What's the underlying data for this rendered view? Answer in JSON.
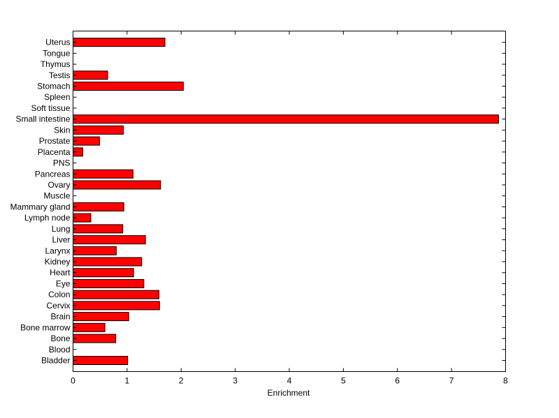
{
  "chart_data": {
    "type": "bar",
    "orientation": "horizontal",
    "xlabel": "Enrichment",
    "ylabel": "",
    "title": "",
    "xlim": [
      0,
      8
    ],
    "xticks": [
      0,
      1,
      2,
      3,
      4,
      5,
      6,
      7,
      8
    ],
    "grid": false,
    "categories": [
      "Bladder",
      "Blood",
      "Bone",
      "Bone marrow",
      "Brain",
      "Cervix",
      "Colon",
      "Eye",
      "Heart",
      "Kidney",
      "Larynx",
      "Liver",
      "Lung",
      "Lymph node",
      "Mammary gland",
      "Muscle",
      "Ovary",
      "Pancreas",
      "PNS",
      "Placenta",
      "Prostate",
      "Skin",
      "Small intestine",
      "Soft tissue",
      "Spleen",
      "Stomach",
      "Testis",
      "Thymus",
      "Tongue",
      "Uterus"
    ],
    "values": [
      1.01,
      0,
      0.79,
      0.59,
      1.03,
      1.6,
      1.59,
      1.31,
      1.12,
      1.27,
      0.8,
      1.34,
      0.92,
      0.33,
      0.94,
      0,
      1.62,
      1.11,
      0,
      0.18,
      0.49,
      0.93,
      7.87,
      0,
      0,
      2.04,
      0.64,
      0,
      0,
      1.7
    ],
    "colors": {
      "bar": "#ff0000",
      "edge": "#000000"
    }
  }
}
